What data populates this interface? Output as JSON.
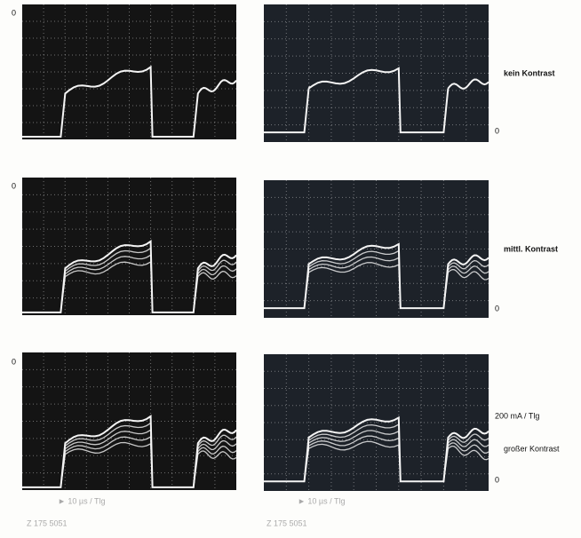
{
  "rows": [
    {
      "left_zero": "0",
      "right_zero": "0",
      "label": "kein Kontrast"
    },
    {
      "left_zero": "0",
      "right_zero": "0",
      "label": "mittl. Kontrast"
    },
    {
      "left_zero": "0",
      "right_zero": "0",
      "label": "großer Kontrast",
      "scale": "200 mA / Tlg"
    }
  ],
  "time_scale": [
    "► 10 µs / Tlg",
    "► 10 µs / Tlg"
  ],
  "codes": [
    "Z 175 5051",
    "Z 175 5051"
  ]
}
